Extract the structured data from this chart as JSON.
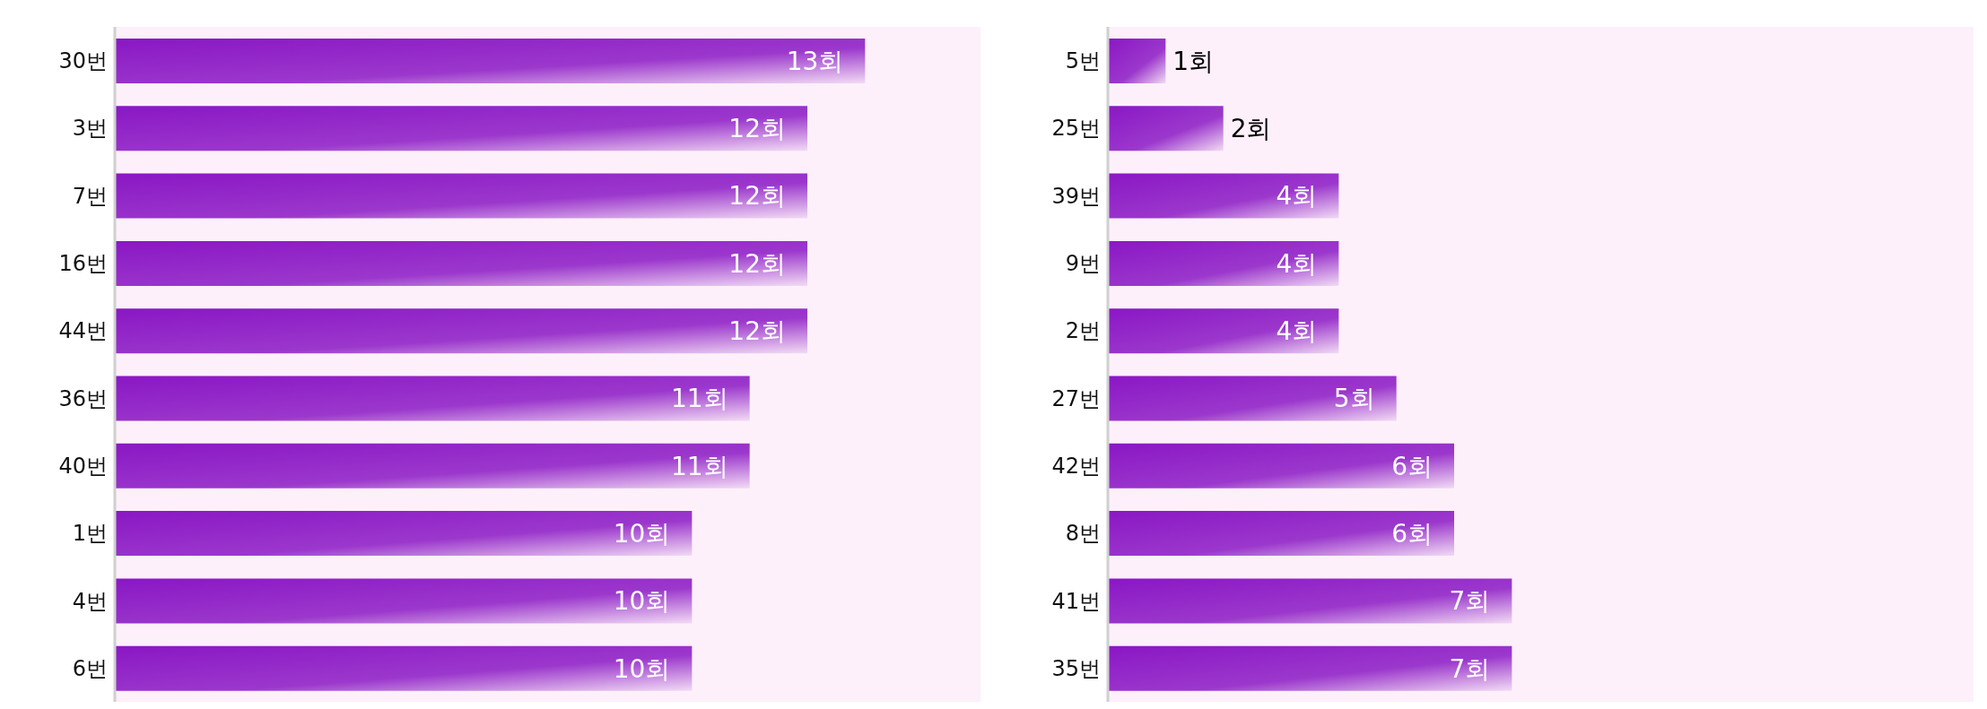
{
  "chart_data": [
    {
      "type": "bar",
      "orientation": "horizontal",
      "categories": [
        "30번",
        "3번",
        "7번",
        "16번",
        "44번",
        "36번",
        "40번",
        "1번",
        "4번",
        "6번"
      ],
      "values": [
        13,
        12,
        12,
        12,
        12,
        11,
        11,
        10,
        10,
        10
      ],
      "value_labels": [
        "13회",
        "12회",
        "12회",
        "12회",
        "12회",
        "11회",
        "11회",
        "10회",
        "10회",
        "10회"
      ],
      "color": "#8a17c4",
      "xlim": [
        0,
        15
      ],
      "tick_labels": "y"
    },
    {
      "type": "bar",
      "orientation": "horizontal",
      "categories": [
        "5번",
        "25번",
        "39번",
        "9번",
        "2번",
        "27번",
        "42번",
        "8번",
        "41번",
        "35번"
      ],
      "values": [
        1,
        2,
        4,
        4,
        4,
        5,
        6,
        6,
        7,
        7
      ],
      "value_labels": [
        "1회",
        "2회",
        "4회",
        "4회",
        "4회",
        "5회",
        "6회",
        "6회",
        "7회",
        "7회"
      ],
      "color": "#8a17c4",
      "xlim": [
        0,
        15
      ],
      "tick_labels": "y"
    }
  ]
}
